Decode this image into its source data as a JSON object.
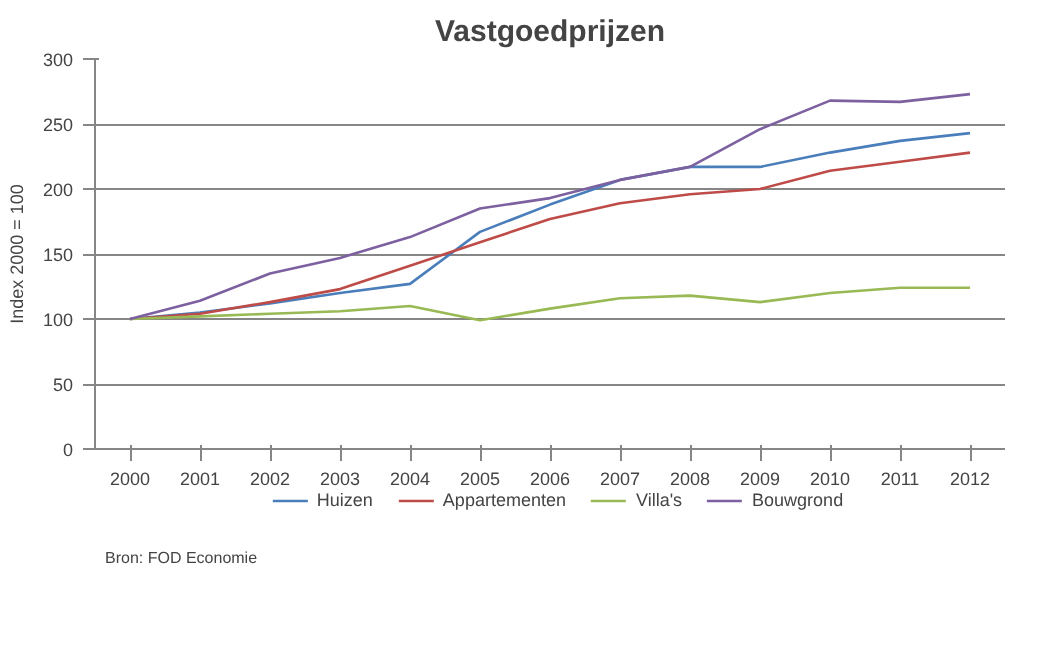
{
  "chart_data": {
    "type": "line",
    "title": "Vastgoedprijzen",
    "ylabel": "Index 2000 = 100",
    "categories": [
      "2000",
      "2001",
      "2002",
      "2003",
      "2004",
      "2005",
      "2006",
      "2007",
      "2008",
      "2009",
      "2010",
      "2011",
      "2012"
    ],
    "series": [
      {
        "name": "Huizen",
        "color": "#4a7ebb",
        "values": [
          100,
          105,
          112,
          120,
          127,
          167,
          188,
          207,
          217,
          217,
          228,
          237,
          243
        ]
      },
      {
        "name": "Appartementen",
        "color": "#be4b48",
        "values": [
          100,
          104,
          113,
          123,
          141,
          159,
          177,
          189,
          196,
          200,
          214,
          221,
          228
        ]
      },
      {
        "name": "Villa's",
        "color": "#98b954",
        "values": [
          100,
          102,
          104,
          106,
          110,
          99,
          108,
          116,
          118,
          113,
          120,
          124,
          124
        ]
      },
      {
        "name": "Bouwgrond",
        "color": "#7d60a0",
        "values": [
          100,
          114,
          135,
          147,
          163,
          185,
          193,
          207,
          217,
          246,
          268,
          267,
          273
        ]
      }
    ],
    "ylim": [
      0,
      300
    ],
    "yticks": [
      0,
      50,
      100,
      150,
      200,
      250,
      300
    ],
    "grid": "y",
    "legend": "bottom",
    "marker": "none",
    "line_style": "solid",
    "annotations": [
      "Bron: FOD Economie"
    ]
  }
}
